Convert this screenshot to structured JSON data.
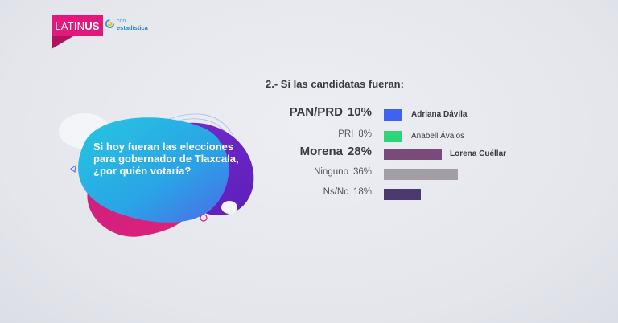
{
  "brand": {
    "name_part1": "LATIN",
    "name_part2": "US",
    "partner_line1": "con",
    "partner_line2": "estadística",
    "accent": "#e2197c",
    "partner_icon": "yellow-blue-swirl-icon"
  },
  "question": "Si hoy fueran las elecciones para gobernador de Tlaxcala, ¿por quién votaría?",
  "chart_data": {
    "type": "bar",
    "title": "2.- Si las candidatas fueran:",
    "categories": [
      "PAN/PRD",
      "PRI",
      "Morena",
      "Ninguno",
      "Ns/Nc"
    ],
    "values": [
      10,
      8,
      28,
      36,
      18
    ],
    "value_labels": [
      "10%",
      "8%",
      "28%",
      "36%",
      "18%"
    ],
    "candidates": [
      "Adriana Dávila",
      "Anabell Ávalos",
      "Lorena Cuéllar",
      "",
      ""
    ],
    "colors": [
      "#3f63f0",
      "#2fd37a",
      "#7a4a7a",
      "#a39ea3",
      "#4a3a6e"
    ],
    "emphasis": [
      true,
      false,
      true,
      false,
      false
    ],
    "xlim": [
      0,
      36
    ]
  }
}
